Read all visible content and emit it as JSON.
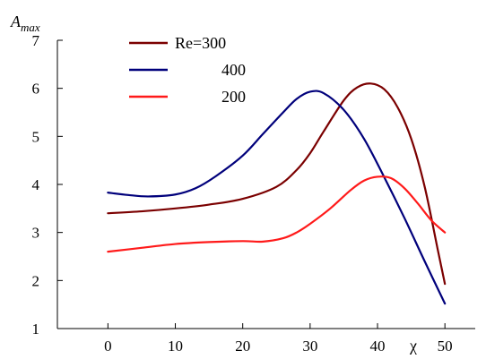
{
  "chart_data": {
    "type": "line",
    "xlabel": "χ",
    "ylabel": {
      "base": "A",
      "sub": "max"
    },
    "xlim": [
      -7.5,
      54.5
    ],
    "ylim": [
      1,
      7
    ],
    "xticks": [
      0,
      10,
      20,
      30,
      40,
      50
    ],
    "yticks": [
      1,
      2,
      3,
      4,
      5,
      6,
      7
    ],
    "legend": {
      "placement": "top-left",
      "entries": [
        "Re=300",
        "400",
        "200"
      ]
    },
    "series": [
      {
        "name": "Re=300",
        "color": "#7b0000",
        "x": [
          0,
          5,
          10,
          15,
          20,
          25,
          28,
          30,
          32,
          35,
          37,
          39,
          41,
          43,
          45,
          47,
          49,
          50
        ],
        "y": [
          3.4,
          3.44,
          3.5,
          3.58,
          3.7,
          3.95,
          4.3,
          4.65,
          5.1,
          5.75,
          6.02,
          6.1,
          5.98,
          5.6,
          4.95,
          3.95,
          2.6,
          1.93
        ]
      },
      {
        "name": "400",
        "color": "#00007b",
        "x": [
          0,
          3,
          6,
          10,
          13,
          16,
          20,
          23,
          26,
          28,
          30,
          32,
          35,
          38,
          41,
          44,
          47,
          50
        ],
        "y": [
          3.83,
          3.78,
          3.75,
          3.79,
          3.92,
          4.17,
          4.6,
          5.05,
          5.5,
          5.78,
          5.93,
          5.9,
          5.55,
          4.95,
          4.15,
          3.3,
          2.4,
          1.52
        ]
      },
      {
        "name": "200",
        "color": "#ff1a1a",
        "x": [
          0,
          5,
          10,
          15,
          20,
          23,
          26,
          28,
          30,
          33,
          36,
          38,
          40,
          42,
          44,
          46,
          48,
          50
        ],
        "y": [
          2.6,
          2.68,
          2.76,
          2.8,
          2.82,
          2.81,
          2.88,
          3.0,
          3.18,
          3.5,
          3.88,
          4.08,
          4.16,
          4.13,
          3.92,
          3.6,
          3.25,
          3.0
        ]
      }
    ]
  }
}
